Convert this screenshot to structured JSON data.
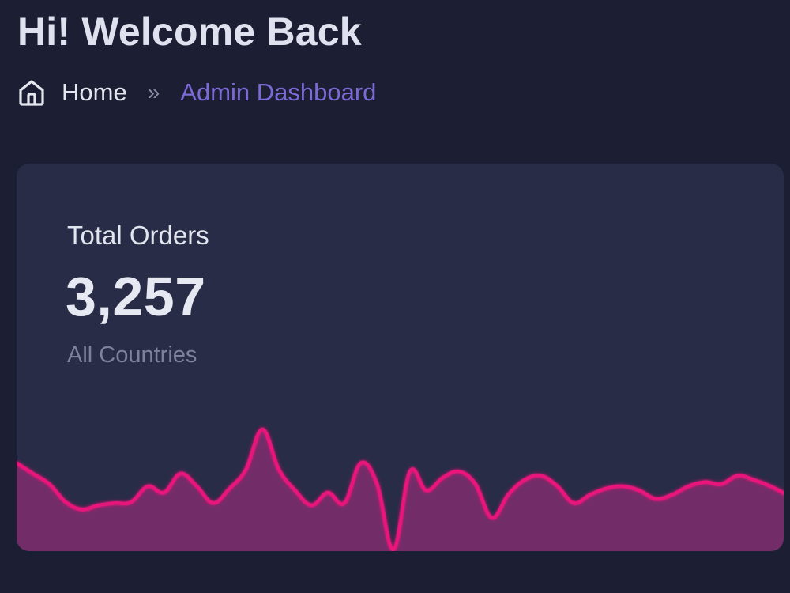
{
  "header": {
    "title": "Hi! Welcome Back"
  },
  "breadcrumb": {
    "home_icon": "home-icon",
    "home_label": "Home",
    "separator": "»",
    "current_label": "Admin Dashboard",
    "current_color": "#7b6ad6"
  },
  "card": {
    "label": "Total Orders",
    "value": "3,257",
    "subtitle": "All Countries"
  },
  "chart_data": {
    "type": "area",
    "x": [
      0,
      1,
      2,
      3,
      4,
      5,
      6,
      7,
      8,
      9,
      10,
      11,
      12,
      13,
      14,
      15,
      16,
      17,
      18,
      19,
      20,
      21,
      22,
      23,
      24,
      25,
      26,
      27,
      28,
      29,
      30,
      31,
      32,
      33,
      34,
      35,
      36,
      37,
      38,
      39,
      40,
      41,
      42,
      43,
      44,
      45,
      46,
      47
    ],
    "series": [
      {
        "values": [
          82,
          72,
          62,
          45,
          38,
          42,
          44,
          45,
          60,
          54,
          72,
          60,
          44,
          58,
          76,
          114,
          76,
          56,
          42,
          54,
          44,
          82,
          62,
          0,
          74,
          56,
          68,
          74,
          62,
          30,
          52,
          66,
          70,
          60,
          44,
          52,
          58,
          60,
          56,
          48,
          52,
          60,
          64,
          62,
          70,
          66,
          60,
          52
        ],
        "color": "#e8137a"
      }
    ],
    "line_color": "#e8137a",
    "fill_color": "#7a2e6b",
    "grid": false,
    "title": "",
    "xlabel": "",
    "ylabel": ""
  }
}
